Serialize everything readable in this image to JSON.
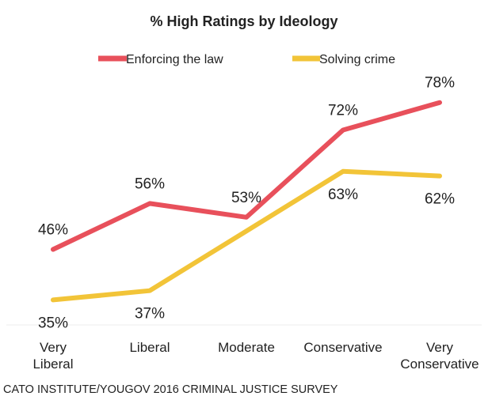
{
  "chart_data": {
    "type": "line",
    "title": "% High Ratings by Ideology",
    "categories": [
      [
        "Very",
        "Liberal"
      ],
      [
        "Liberal"
      ],
      [
        "Moderate"
      ],
      [
        "Conservative"
      ],
      [
        "Very",
        "Conservative"
      ]
    ],
    "series": [
      {
        "name": "Enforcing the law",
        "color": "#e8505b",
        "values": [
          46,
          56,
          53,
          72,
          78
        ],
        "labels": [
          "46%",
          "56%",
          "53%",
          "72%",
          "78%"
        ],
        "label_position": [
          "above",
          "above",
          "above",
          "above",
          "above"
        ]
      },
      {
        "name": "Solving crime",
        "color": "#f2c438",
        "values": [
          35,
          37,
          null,
          63,
          62
        ],
        "labels": [
          "35%",
          "37%",
          "",
          "63%",
          "62%"
        ],
        "label_position": [
          "below",
          "below",
          "below",
          "below",
          "below"
        ]
      }
    ],
    "ylim": [
      28,
      90
    ],
    "xlabel": "",
    "ylabel": "",
    "legend_position": "top",
    "grid": false,
    "source": "CATO INSTITUTE/YOUGOV 2016 CRIMINAL JUSTICE SURVEY"
  }
}
